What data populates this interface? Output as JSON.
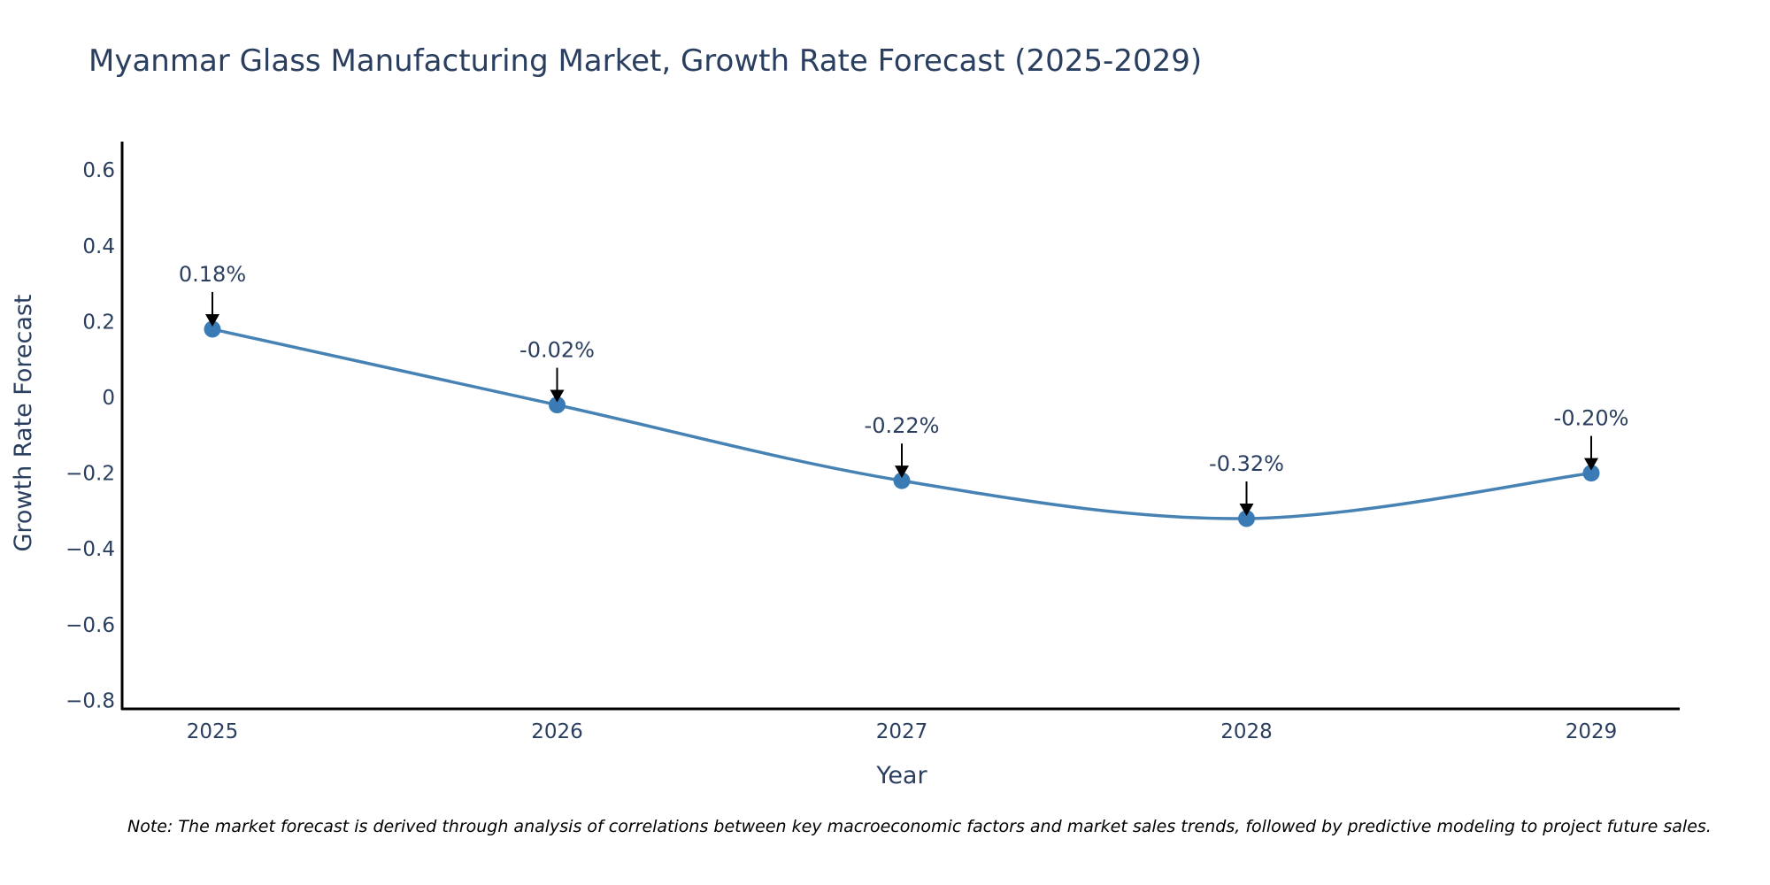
{
  "chart_data": {
    "type": "line",
    "title": "Myanmar Glass Manufacturing Market, Growth Rate Forecast (2025-2029)",
    "xlabel": "Year",
    "ylabel": "Growth Rate Forecast",
    "categories": [
      "2025",
      "2026",
      "2027",
      "2028",
      "2029"
    ],
    "series": [
      {
        "name": "Growth Rate Forecast",
        "values": [
          0.18,
          -0.02,
          -0.22,
          -0.32,
          -0.2
        ],
        "color": "#4682b4",
        "line_shape": "spline",
        "markers": true
      }
    ],
    "annotations": [
      "0.18%",
      "-0.02%",
      "-0.22%",
      "-0.32%",
      "-0.20%"
    ],
    "yticks": [
      0.6,
      0.4,
      0.2,
      0,
      -0.2,
      -0.4,
      -0.6,
      -0.8
    ],
    "ytick_labels": [
      "0.6",
      "0.4",
      "0.2",
      "0",
      "−0.2",
      "−0.4",
      "−0.6",
      "−0.8"
    ],
    "ylim": [
      -0.83,
      0.68
    ],
    "grid": false,
    "legend": "none",
    "note": "Note: The market forecast is derived through analysis of correlations between key macroeconomic factors and market sales trends, followed by predictive modeling to project future sales."
  }
}
